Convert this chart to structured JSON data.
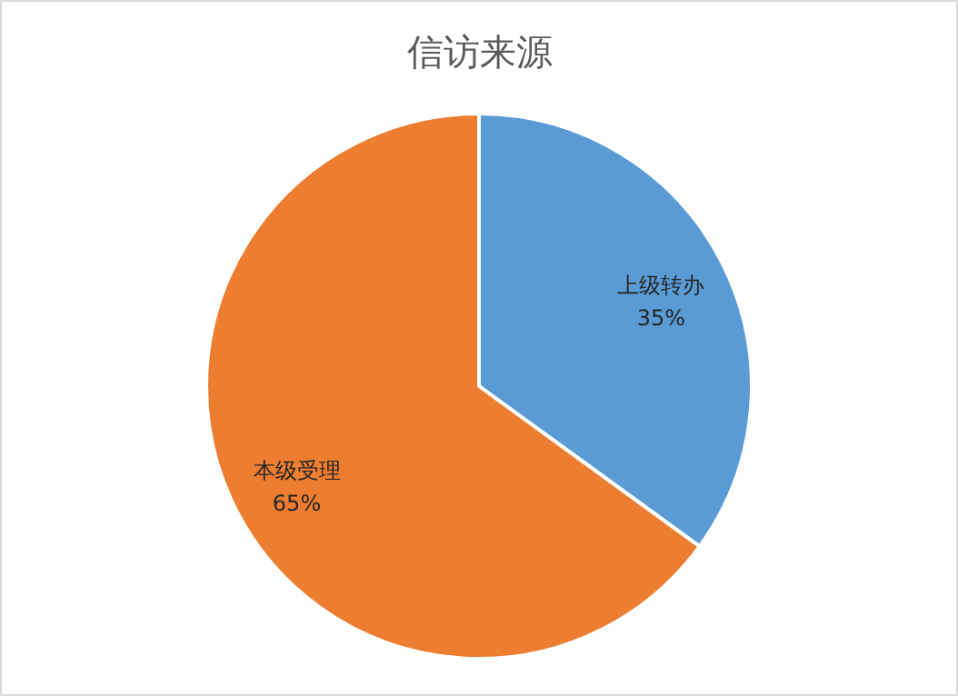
{
  "chart_data": {
    "type": "pie",
    "title": "信访来源",
    "categories": [
      "上级转办",
      "本级受理"
    ],
    "values": [
      35,
      65
    ],
    "colors": [
      "#5b9bd5",
      "#ed7d31"
    ],
    "value_labels": [
      "35%",
      "65%"
    ],
    "legend": false
  }
}
